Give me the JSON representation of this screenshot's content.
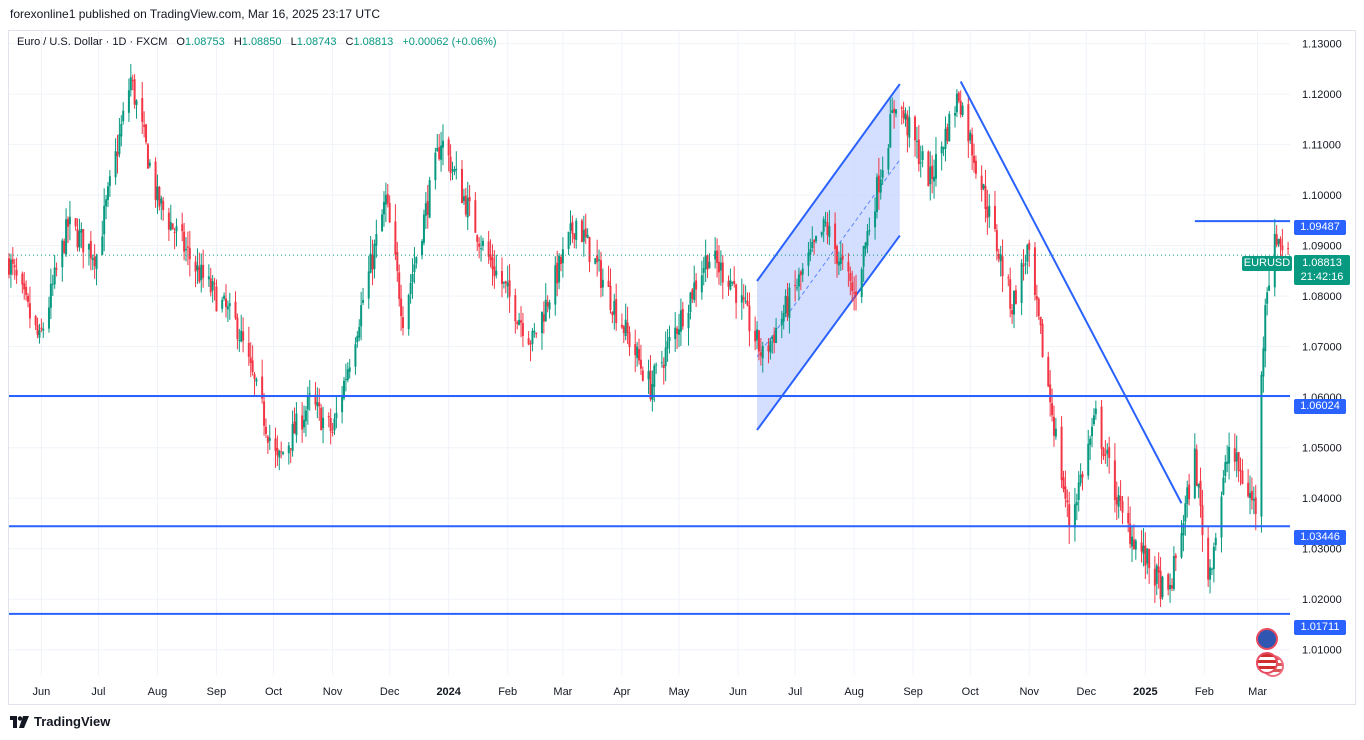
{
  "header": {
    "published": "forexonline1 published on TradingView.com, Mar 16, 2025 23:17 UTC"
  },
  "legend": {
    "symbol": "Euro / U.S. Dollar · 1D · FXCM",
    "o_label": "O",
    "o": "1.08753",
    "h_label": "H",
    "h": "1.08850",
    "l_label": "L",
    "l": "1.08743",
    "c_label": "C",
    "c": "1.08813",
    "change": "+0.00062 (+0.06%)"
  },
  "brand": {
    "name": "TradingView"
  },
  "colors": {
    "up": "#089981",
    "down": "#f23645",
    "line": "#2962ff",
    "channel_fill": "#c9d6ff"
  },
  "badges": {
    "symbol": "EURUSD",
    "last_price": "1.08813",
    "countdown": "21:42:16",
    "levels": [
      "1.09487",
      "1.06024",
      "1.03446",
      "1.01711"
    ]
  },
  "chart_data": {
    "type": "candlestick",
    "y_axis": {
      "min": 1.005,
      "max": 1.1325,
      "ticks": [
        1.01,
        1.02,
        1.03,
        1.04,
        1.05,
        1.06,
        1.07,
        1.08,
        1.09,
        1.1,
        1.11,
        1.12,
        1.13
      ],
      "tick_labels": [
        "1.01000",
        "1.02000",
        "1.03000",
        "1.04000",
        "1.05000",
        "1.06000",
        "1.07000",
        "1.08000",
        "1.09000",
        "1.10000",
        "1.11000",
        "1.12000",
        "1.13000"
      ]
    },
    "x_axis": {
      "start": "2023-05-15",
      "end": "2025-03-18",
      "ticks": [
        {
          "date": "2023-06-01",
          "label": "Jun",
          "bold": false
        },
        {
          "date": "2023-07-01",
          "label": "Jul",
          "bold": false
        },
        {
          "date": "2023-08-01",
          "label": "Aug",
          "bold": false
        },
        {
          "date": "2023-09-01",
          "label": "Sep",
          "bold": false
        },
        {
          "date": "2023-10-01",
          "label": "Oct",
          "bold": false
        },
        {
          "date": "2023-11-01",
          "label": "Nov",
          "bold": false
        },
        {
          "date": "2023-12-01",
          "label": "Dec",
          "bold": false
        },
        {
          "date": "2024-01-01",
          "label": "2024",
          "bold": true
        },
        {
          "date": "2024-02-01",
          "label": "Feb",
          "bold": false
        },
        {
          "date": "2024-03-01",
          "label": "Mar",
          "bold": false
        },
        {
          "date": "2024-04-01",
          "label": "Apr",
          "bold": false
        },
        {
          "date": "2024-05-01",
          "label": "May",
          "bold": false
        },
        {
          "date": "2024-06-01",
          "label": "Jun",
          "bold": false
        },
        {
          "date": "2024-07-01",
          "label": "Jul",
          "bold": false
        },
        {
          "date": "2024-08-01",
          "label": "Aug",
          "bold": false
        },
        {
          "date": "2024-09-01",
          "label": "Sep",
          "bold": false
        },
        {
          "date": "2024-10-01",
          "label": "Oct",
          "bold": false
        },
        {
          "date": "2024-11-01",
          "label": "Nov",
          "bold": false
        },
        {
          "date": "2024-12-01",
          "label": "Dec",
          "bold": false
        },
        {
          "date": "2025-01-01",
          "label": "2025",
          "bold": true
        },
        {
          "date": "2025-02-01",
          "label": "Feb",
          "bold": false
        },
        {
          "date": "2025-03-01",
          "label": "Mar",
          "bold": false
        }
      ]
    },
    "close_path": [
      {
        "date": "2023-05-15",
        "price": 1.087
      },
      {
        "date": "2023-05-31",
        "price": 1.071
      },
      {
        "date": "2023-06-15",
        "price": 1.094
      },
      {
        "date": "2023-06-30",
        "price": 1.088
      },
      {
        "date": "2023-07-18",
        "price": 1.123
      },
      {
        "date": "2023-08-01",
        "price": 1.099
      },
      {
        "date": "2023-08-22",
        "price": 1.085
      },
      {
        "date": "2023-09-12",
        "price": 1.074
      },
      {
        "date": "2023-10-03",
        "price": 1.047
      },
      {
        "date": "2023-10-20",
        "price": 1.059
      },
      {
        "date": "2023-11-01",
        "price": 1.053
      },
      {
        "date": "2023-11-29",
        "price": 1.099
      },
      {
        "date": "2023-12-08",
        "price": 1.076
      },
      {
        "date": "2023-12-28",
        "price": 1.111
      },
      {
        "date": "2024-01-20",
        "price": 1.089
      },
      {
        "date": "2024-02-14",
        "price": 1.071
      },
      {
        "date": "2024-03-08",
        "price": 1.095
      },
      {
        "date": "2024-04-16",
        "price": 1.062
      },
      {
        "date": "2024-05-16",
        "price": 1.088
      },
      {
        "date": "2024-05-29",
        "price": 1.083
      },
      {
        "date": "2024-06-14",
        "price": 1.068
      },
      {
        "date": "2024-07-17",
        "price": 1.094
      },
      {
        "date": "2024-08-01",
        "price": 1.08
      },
      {
        "date": "2024-08-23",
        "price": 1.119
      },
      {
        "date": "2024-09-10",
        "price": 1.103
      },
      {
        "date": "2024-09-25",
        "price": 1.12
      },
      {
        "date": "2024-10-23",
        "price": 1.078
      },
      {
        "date": "2024-10-31",
        "price": 1.089
      },
      {
        "date": "2024-11-22",
        "price": 1.035
      },
      {
        "date": "2024-12-06",
        "price": 1.056
      },
      {
        "date": "2024-12-20",
        "price": 1.036
      },
      {
        "date": "2025-01-13",
        "price": 1.02
      },
      {
        "date": "2025-01-27",
        "price": 1.048
      },
      {
        "date": "2025-02-03",
        "price": 1.024
      },
      {
        "date": "2025-02-14",
        "price": 1.05
      },
      {
        "date": "2025-02-28",
        "price": 1.038
      },
      {
        "date": "2025-03-05",
        "price": 1.08
      },
      {
        "date": "2025-03-11",
        "price": 1.092
      },
      {
        "date": "2025-03-17",
        "price": 1.0881
      }
    ],
    "current_price": 1.08813,
    "horizontal_lines": [
      {
        "price": 1.06024,
        "label": "1.06024",
        "from": "2023-05-15"
      },
      {
        "price": 1.03446,
        "label": "1.03446",
        "from": "2023-05-15"
      },
      {
        "price": 1.01711,
        "label": "1.01711",
        "from": "2023-05-15"
      },
      {
        "price": 1.09487,
        "label": "1.09487",
        "from": "2025-01-27"
      }
    ],
    "trendlines": [
      {
        "from": {
          "date": "2024-09-26",
          "price": 1.1225
        },
        "to": {
          "date": "2025-01-20",
          "price": 1.039
        }
      }
    ],
    "channel": {
      "upper": [
        {
          "date": "2024-06-11",
          "price": 1.083
        },
        {
          "date": "2024-08-25",
          "price": 1.122
        }
      ],
      "lower": [
        {
          "date": "2024-06-11",
          "price": 1.0535
        },
        {
          "date": "2024-08-25",
          "price": 1.092
        }
      ],
      "mid": [
        {
          "date": "2024-06-11",
          "price": 1.068
        },
        {
          "date": "2024-08-25",
          "price": 1.107
        }
      ]
    }
  }
}
